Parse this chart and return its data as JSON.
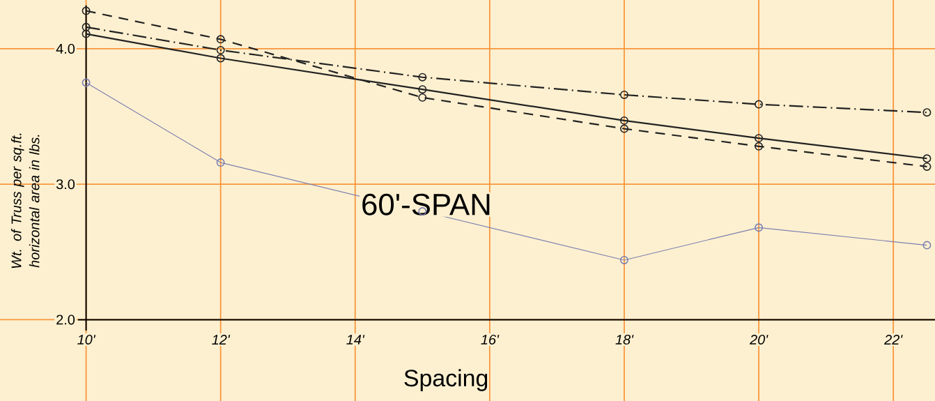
{
  "chart_data": {
    "type": "line",
    "xlabel": "Spacing",
    "ylabel": "Wt. of Truss per sq.ft. horizontal area in lbs.",
    "annotations": [
      "60'-SPAN"
    ],
    "x": [
      10,
      12,
      15,
      18,
      20,
      22.5
    ],
    "series": [
      {
        "color": "#222222",
        "line_style": "dashed",
        "values": [
          4.28,
          4.07,
          3.64,
          3.41,
          3.28,
          3.13
        ]
      },
      {
        "color": "#222222",
        "line_style": "dashdot",
        "values": [
          4.16,
          3.99,
          3.79,
          3.66,
          3.59,
          3.53
        ]
      },
      {
        "color": "#222222",
        "line_style": "solid",
        "values": [
          4.11,
          3.93,
          3.7,
          3.47,
          3.34,
          3.19
        ]
      },
      {
        "color": "#7b7fb0",
        "line_style": "solid",
        "values": [
          3.75,
          3.16,
          2.8,
          2.44,
          2.68,
          2.55
        ]
      }
    ],
    "xlim": [
      8.72,
      22.62
    ],
    "ylim": [
      1.4,
      4.36
    ],
    "xticks": [
      {
        "value": 10,
        "label": "10'"
      },
      {
        "value": 12,
        "label": "12'"
      },
      {
        "value": 14,
        "label": "14'"
      },
      {
        "value": 16,
        "label": "16'"
      },
      {
        "value": 18,
        "label": "18'"
      },
      {
        "value": 20,
        "label": "20'"
      },
      {
        "value": 22,
        "label": "22'"
      }
    ],
    "yticks": [
      {
        "value": 2,
        "label": "2.0"
      },
      {
        "value": 3,
        "label": "3.0"
      },
      {
        "value": 4,
        "label": "4.0"
      }
    ],
    "grid": true,
    "marker": "circle"
  }
}
